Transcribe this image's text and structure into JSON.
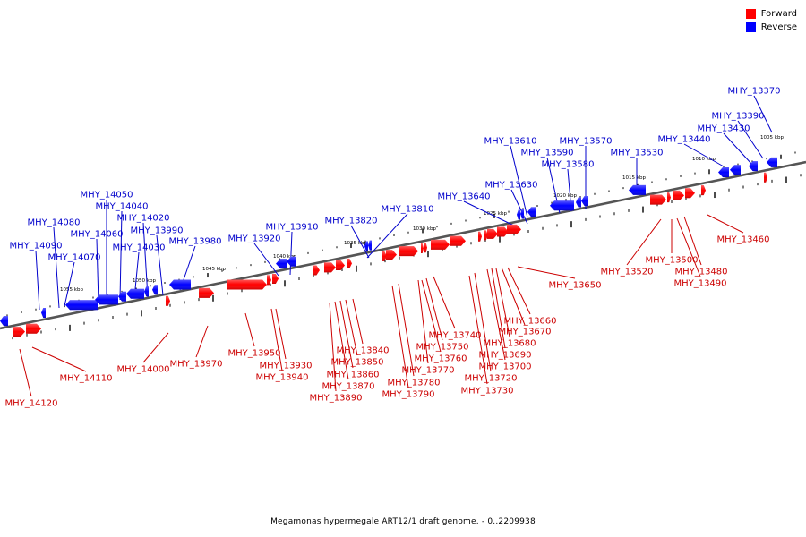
{
  "caption": "Megamonas hypermegale ART12/1 draft genome. - 0..2209938",
  "legend": [
    {
      "label": "Forward",
      "color": "#ff0000"
    },
    {
      "label": "Reverse",
      "color": "#0000ff"
    }
  ],
  "colors": {
    "forward": "#ff0000",
    "reverse": "#0000ff",
    "backbone": "#555555"
  },
  "kbp_ticks": [
    "1005 kbp",
    "1010 kbp",
    "1015 kbp",
    "1020 kbp",
    "1025 kbp",
    "1030 kbp",
    "1035 kbp",
    "1040 kbp",
    "1045 kbp",
    "1050 kbp",
    "1055 kbp"
  ],
  "forward_genes": [
    "MHY_13460",
    "MHY_13480",
    "MHY_13490",
    "MHY_13500",
    "MHY_13520",
    "MHY_13650",
    "MHY_13660",
    "MHY_13670",
    "MHY_13680",
    "MHY_13690",
    "MHY_13700",
    "MHY_13720",
    "MHY_13730",
    "MHY_13740",
    "MHY_13750",
    "MHY_13760",
    "MHY_13770",
    "MHY_13780",
    "MHY_13790",
    "MHY_13840",
    "MHY_13850",
    "MHY_13860",
    "MHY_13870",
    "MHY_13890",
    "MHY_13930",
    "MHY_13940",
    "MHY_13950",
    "MHY_13970",
    "MHY_14000",
    "MHY_14110",
    "MHY_14120"
  ],
  "reverse_genes": [
    "MHY_13370",
    "MHY_13390",
    "MHY_13430",
    "MHY_13440",
    "MHY_13530",
    "MHY_13570",
    "MHY_13580",
    "MHY_13590",
    "MHY_13610",
    "MHY_13630",
    "MHY_13640",
    "MHY_13810",
    "MHY_13820",
    "MHY_13910",
    "MHY_13920",
    "MHY_13980",
    "MHY_13990",
    "MHY_14020",
    "MHY_14030",
    "MHY_14040",
    "MHY_14050",
    "MHY_14060",
    "MHY_14070",
    "MHY_14080",
    "MHY_14090"
  ]
}
